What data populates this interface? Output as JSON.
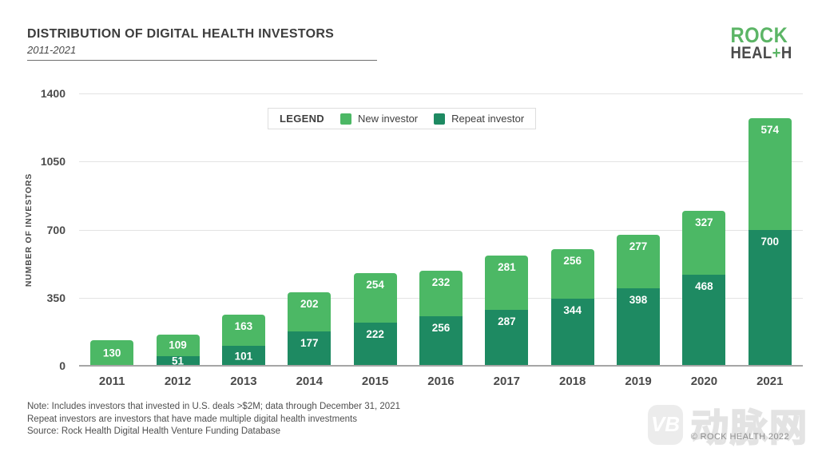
{
  "header": {
    "title": "DISTRIBUTION OF DIGITAL HEALTH INVESTORS",
    "subtitle": "2011-2021"
  },
  "logo": {
    "top": "ROCK",
    "bottom_left": "HEAL",
    "bottom_plus": "+",
    "bottom_right": "H",
    "green": "#5cb566",
    "dark": "#4a4a4a"
  },
  "legend": {
    "label": "LEGEND",
    "items": [
      {
        "label": "New investor",
        "color": "#4cb865"
      },
      {
        "label": "Repeat investor",
        "color": "#1e8a62"
      }
    ]
  },
  "chart_data": {
    "type": "bar",
    "stacked": true,
    "title": "DISTRIBUTION OF DIGITAL HEALTH INVESTORS",
    "subtitle": "2011-2021",
    "ylabel": "NUMBER OF INVESTORS",
    "xlabel": "",
    "categories": [
      "2011",
      "2012",
      "2013",
      "2014",
      "2015",
      "2016",
      "2017",
      "2018",
      "2019",
      "2020",
      "2021"
    ],
    "series": [
      {
        "name": "Repeat investor",
        "color": "#1e8a62",
        "values": [
          0,
          51,
          101,
          177,
          222,
          256,
          287,
          344,
          398,
          468,
          700
        ]
      },
      {
        "name": "New investor",
        "color": "#4cb865",
        "values": [
          130,
          109,
          163,
          202,
          254,
          232,
          281,
          256,
          277,
          327,
          574
        ]
      }
    ],
    "series_order_bottom_to_top": [
      "Repeat investor",
      "New investor"
    ],
    "totals": [
      130,
      160,
      264,
      379,
      476,
      488,
      568,
      600,
      675,
      795,
      1274
    ],
    "yticks": [
      0,
      350,
      700,
      1050,
      1400
    ],
    "ylim": [
      0,
      1400
    ],
    "grid": true,
    "value_labels": true,
    "legend_position": "top-center"
  },
  "footer": {
    "notes": [
      "Note: Includes investors that invested in U.S. deals >$2M; data through December 31, 2021",
      "Repeat investors are investors that have made multiple digital health investments",
      "Source: Rock Health Digital Health Venture Funding Database"
    ]
  },
  "watermark": {
    "logo_text": "VB",
    "cjk_text": "动脉网",
    "copyright": "© ROCK HEALTH 2022"
  }
}
